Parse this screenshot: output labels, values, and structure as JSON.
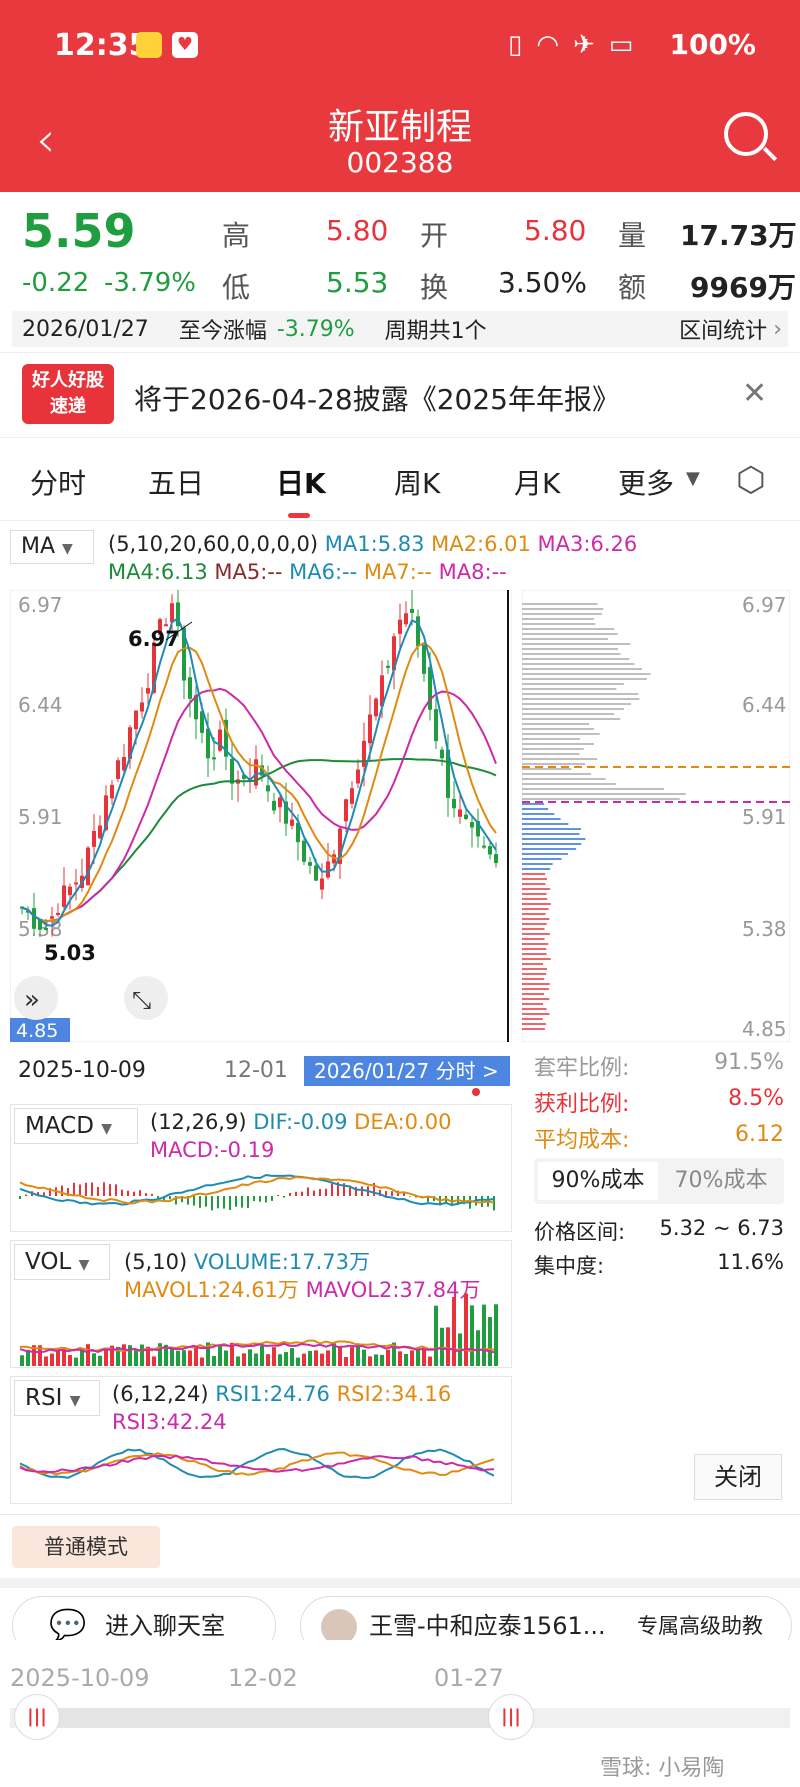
{
  "status_bar": {
    "time": "12:35",
    "battery": "100%"
  },
  "header": {
    "title": "新亚制程",
    "code": "002388"
  },
  "quote": {
    "price": "5.59",
    "change": "-0.22",
    "change_pct": "-3.79%",
    "high_label": "高",
    "high": "5.80",
    "low_label": "低",
    "low": "5.53",
    "open_label": "开",
    "open": "5.80",
    "turnover_label": "换",
    "turnover": "3.50%",
    "volume_label": "量",
    "volume": "17.73万",
    "amount_label": "额",
    "amount": "9969万"
  },
  "period_row": {
    "date": "2026/01/27",
    "label": "至今涨幅",
    "pct": "-3.79%",
    "periods": "周期共1个",
    "stats": "区间统计"
  },
  "notice": {
    "badge_top": "好人好股",
    "badge_bottom": "速递",
    "text": "将于2026-04-28披露《2025年年报》"
  },
  "tabs": [
    "分时",
    "五日",
    "日K",
    "周K",
    "月K",
    "更多"
  ],
  "ma": {
    "name": "MA",
    "params": "(5,10,20,60,0,0,0,0)",
    "ma1": "MA1:5.83",
    "ma2": "MA2:6.01",
    "ma3": "MA3:6.26",
    "ma4": "MA4:6.13",
    "ma5": "MA5:--",
    "ma6": "MA6:--",
    "ma7": "MA7:--",
    "ma8": "MA8:--"
  },
  "kline": {
    "y_labels": [
      "6.97",
      "6.44",
      "5.91",
      "5.38",
      "4.85"
    ],
    "high_mark": "6.97",
    "low_mark": "5.03",
    "x_start": "2025-10-09",
    "x_mid": "12-01",
    "x_tag": "2026/01/27 分时 >"
  },
  "chip": {
    "y_labels": [
      "6.97",
      "6.44",
      "5.91",
      "5.38",
      "4.85"
    ],
    "rows": [
      {
        "label": "套牢比例:",
        "value": "91.5%"
      },
      {
        "label": "获利比例:",
        "value": "8.5%"
      },
      {
        "label": "平均成本:",
        "value": "6.12"
      }
    ],
    "tab_90": "90%成本",
    "tab_70": "70%成本",
    "range_label": "价格区间:",
    "range_value": "5.32 ~ 6.73",
    "conc_label": "集中度:",
    "conc_value": "11.6%",
    "close": "关闭"
  },
  "macd": {
    "name": "MACD",
    "params": "(12,26,9)",
    "dif": "DIF:-0.09",
    "dea": "DEA:0.00",
    "macd": "MACD:-0.19"
  },
  "vol": {
    "name": "VOL",
    "params": "(5,10)",
    "volume": "VOLUME:17.73万",
    "mavol1": "MAVOL1:24.61万",
    "mavol2": "MAVOL2:37.84万"
  },
  "rsi": {
    "name": "RSI",
    "params": "(6,12,24)",
    "rsi1": "RSI1:24.76",
    "rsi2": "RSI2:34.16",
    "rsi3": "RSI3:42.24"
  },
  "mode_button": "普通模式",
  "chat_button": "进入聊天室",
  "advisor": {
    "name": "王雪-中和应泰1561...",
    "tag": "专属高级助教"
  },
  "timeline": {
    "labels": [
      "2025-10-09",
      "12-02",
      "01-27"
    ]
  },
  "watermark": "雪球: 小易陶",
  "colors": {
    "brand": "#e83a3e",
    "up": "#e8333a",
    "down": "#1f9d3f",
    "ma1": "#1e8bb5",
    "ma2": "#e08a12",
    "ma3": "#cc2aa9",
    "ma4": "#1f8a3a"
  }
}
